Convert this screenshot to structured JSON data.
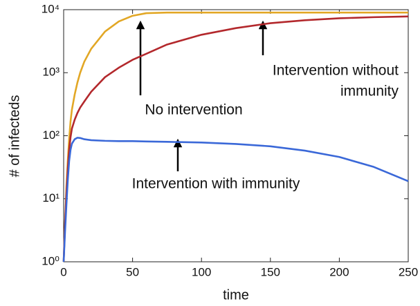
{
  "chart_data": {
    "type": "line",
    "xlabel": "time",
    "ylabel": "# of infecteds",
    "x": [
      0,
      1,
      2,
      3,
      4,
      5,
      6,
      8,
      10,
      12,
      15,
      20,
      30,
      40,
      50,
      60,
      75,
      100,
      125,
      150,
      175,
      200,
      225,
      250
    ],
    "series": [
      {
        "name": "No intervention",
        "color": "#e2a725",
        "values": [
          1,
          4,
          15,
          40,
          90,
          170,
          260,
          450,
          700,
          1000,
          1500,
          2400,
          4500,
          6500,
          8000,
          8800,
          9000,
          9000,
          9000,
          9000,
          9000,
          9000,
          9000,
          9000
        ]
      },
      {
        "name": "Intervention without immunity",
        "color": "#b3282c",
        "values": [
          1,
          4,
          12,
          30,
          60,
          95,
          130,
          180,
          230,
          280,
          350,
          500,
          850,
          1200,
          1600,
          2000,
          2800,
          4000,
          5100,
          6100,
          6800,
          7300,
          7600,
          7800
        ]
      },
      {
        "name": "Intervention with immunity",
        "color": "#3a68d8",
        "values": [
          1,
          3,
          8,
          20,
          40,
          60,
          75,
          88,
          93,
          92,
          88,
          85,
          83,
          82,
          82,
          81,
          80,
          78,
          74,
          68,
          58,
          46,
          32,
          19
        ]
      }
    ],
    "annotations": [
      [
        "No intervention"
      ],
      [
        "Intervention without",
        "immunity"
      ],
      [
        "Intervention with immunity"
      ]
    ],
    "xlim": [
      0,
      250
    ],
    "xticks": [
      0,
      50,
      100,
      150,
      200,
      250
    ],
    "ylim": [
      1,
      10000
    ],
    "yscale": "log",
    "yticks": [
      {
        "value": 1,
        "label": "10⁰"
      },
      {
        "value": 10,
        "label": "10¹"
      },
      {
        "value": 100,
        "label": "10²"
      },
      {
        "value": 1000,
        "label": "10³"
      },
      {
        "value": 10000,
        "label": "10⁴"
      }
    ],
    "grid": false
  }
}
